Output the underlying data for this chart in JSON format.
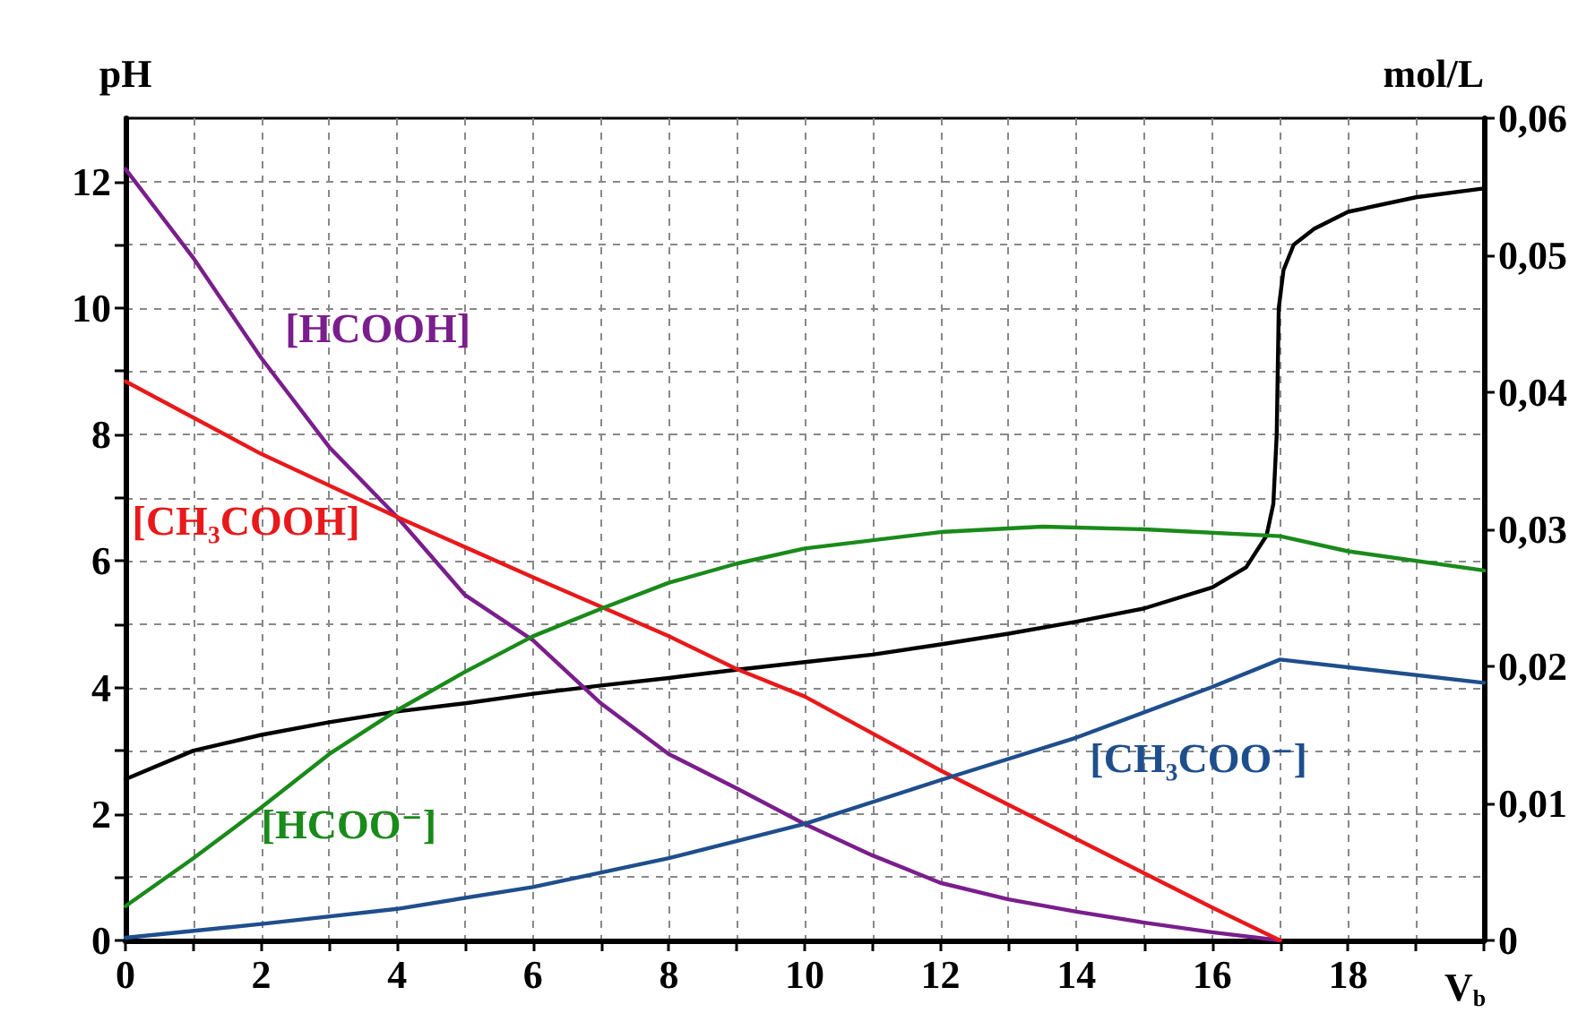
{
  "chart_data": {
    "type": "line",
    "ylabel": "pH",
    "y2label": "mol/L",
    "xlabel": "V$_{b}$",
    "xlim": [
      0,
      20
    ],
    "xticks": [
      0,
      {
        "value": 1,
        "label": null
      },
      2,
      {
        "value": 3,
        "label": null
      },
      4,
      {
        "value": 5,
        "label": null
      },
      6,
      {
        "value": 7,
        "label": null
      },
      8,
      {
        "value": 9,
        "label": null
      },
      10,
      {
        "value": 11,
        "label": null
      },
      12,
      {
        "value": 13,
        "label": null
      },
      14,
      {
        "value": 15,
        "label": null
      },
      16,
      {
        "value": 17,
        "label": null
      },
      18,
      {
        "value": 19,
        "label": null
      },
      {
        "value": 20,
        "label": null
      }
    ],
    "ylim": [
      0,
      13
    ],
    "yticks": [
      0,
      {
        "value": 1,
        "label": null
      },
      2,
      {
        "value": 3,
        "label": null
      },
      4,
      {
        "value": 5,
        "label": null
      },
      6,
      {
        "value": 7,
        "label": null
      },
      8,
      {
        "value": 9,
        "label": null
      },
      10,
      {
        "value": 11,
        "label": null
      },
      12
    ],
    "y2lim": [
      0,
      0.06
    ],
    "y2ticks": [
      0,
      {
        "value": 0.01,
        "label": "0,01"
      },
      {
        "value": 0.02,
        "label": "0,02"
      },
      {
        "value": 0.03,
        "label": "0,03"
      },
      {
        "value": 0.04,
        "label": "0,04"
      },
      {
        "value": 0.05,
        "label": "0,05"
      },
      {
        "value": 0.06,
        "label": "0,06"
      }
    ],
    "grid": true,
    "legend": false,
    "marker": "none",
    "line_style": "solid",
    "series": [
      {
        "color": "#000000",
        "x": [
          0,
          1,
          2,
          3,
          4,
          5,
          6,
          7,
          8,
          9,
          10,
          11,
          12,
          13,
          14,
          15,
          16,
          16.5,
          16.8,
          16.9,
          16.95,
          16.98,
          17.05,
          17.2,
          17.5,
          18,
          19,
          20
        ],
        "values": [
          2.55,
          3.0,
          3.25,
          3.45,
          3.62,
          3.75,
          3.9,
          4.03,
          4.15,
          4.28,
          4.4,
          4.52,
          4.68,
          4.85,
          5.04,
          5.25,
          5.58,
          5.9,
          6.4,
          6.9,
          8,
          10,
          10.6,
          11.0,
          11.25,
          11.52,
          11.75,
          11.89
        ]
      },
      {
        "name": "[HCOOH]",
        "color": "#7a1e8c",
        "axis": "y2",
        "x": [
          0,
          1,
          2,
          3,
          4,
          5,
          6,
          7,
          8,
          9,
          10,
          11,
          12,
          13,
          14,
          15,
          16,
          17
        ],
        "values": [
          0.0563,
          0.0498,
          0.0425,
          0.036,
          0.0309,
          0.0252,
          0.0219,
          0.0173,
          0.0136,
          0.0111,
          0.0085,
          0.0062,
          0.0042,
          0.003,
          0.0021,
          0.0013,
          0.0006,
          0
        ]
      },
      {
        "name": "[CH₃COOH]",
        "color": "#e8191b",
        "axis": "y2",
        "x": [
          0,
          2,
          4,
          6,
          8,
          9,
          10,
          12,
          14,
          16,
          17
        ],
        "values": [
          0.0408,
          0.0355,
          0.0309,
          0.0265,
          0.0222,
          0.0198,
          0.0178,
          0.0124,
          0.0074,
          0.0024,
          0
        ]
      },
      {
        "name": "[HCOO⁻]",
        "color": "#1a8a1a",
        "axis": "y2",
        "x": [
          0,
          1,
          2,
          3,
          4,
          5,
          6,
          7,
          8,
          9,
          10,
          12,
          13.5,
          15,
          17,
          18,
          20
        ],
        "values": [
          0.0025,
          0.006,
          0.0097,
          0.0136,
          0.0168,
          0.0196,
          0.0222,
          0.0242,
          0.0261,
          0.0275,
          0.0286,
          0.0298,
          0.0302,
          0.03,
          0.0295,
          0.0284,
          0.027
        ]
      },
      {
        "name": "[CH₃COO⁻]",
        "color": "#1f4e8c",
        "axis": "y2",
        "x": [
          0,
          2,
          4,
          6,
          8,
          10,
          12,
          14,
          16,
          17,
          20
        ],
        "values": [
          0.0002,
          0.0012,
          0.0023,
          0.0039,
          0.006,
          0.0085,
          0.0117,
          0.0148,
          0.0185,
          0.0205,
          0.0188
        ]
      }
    ]
  }
}
